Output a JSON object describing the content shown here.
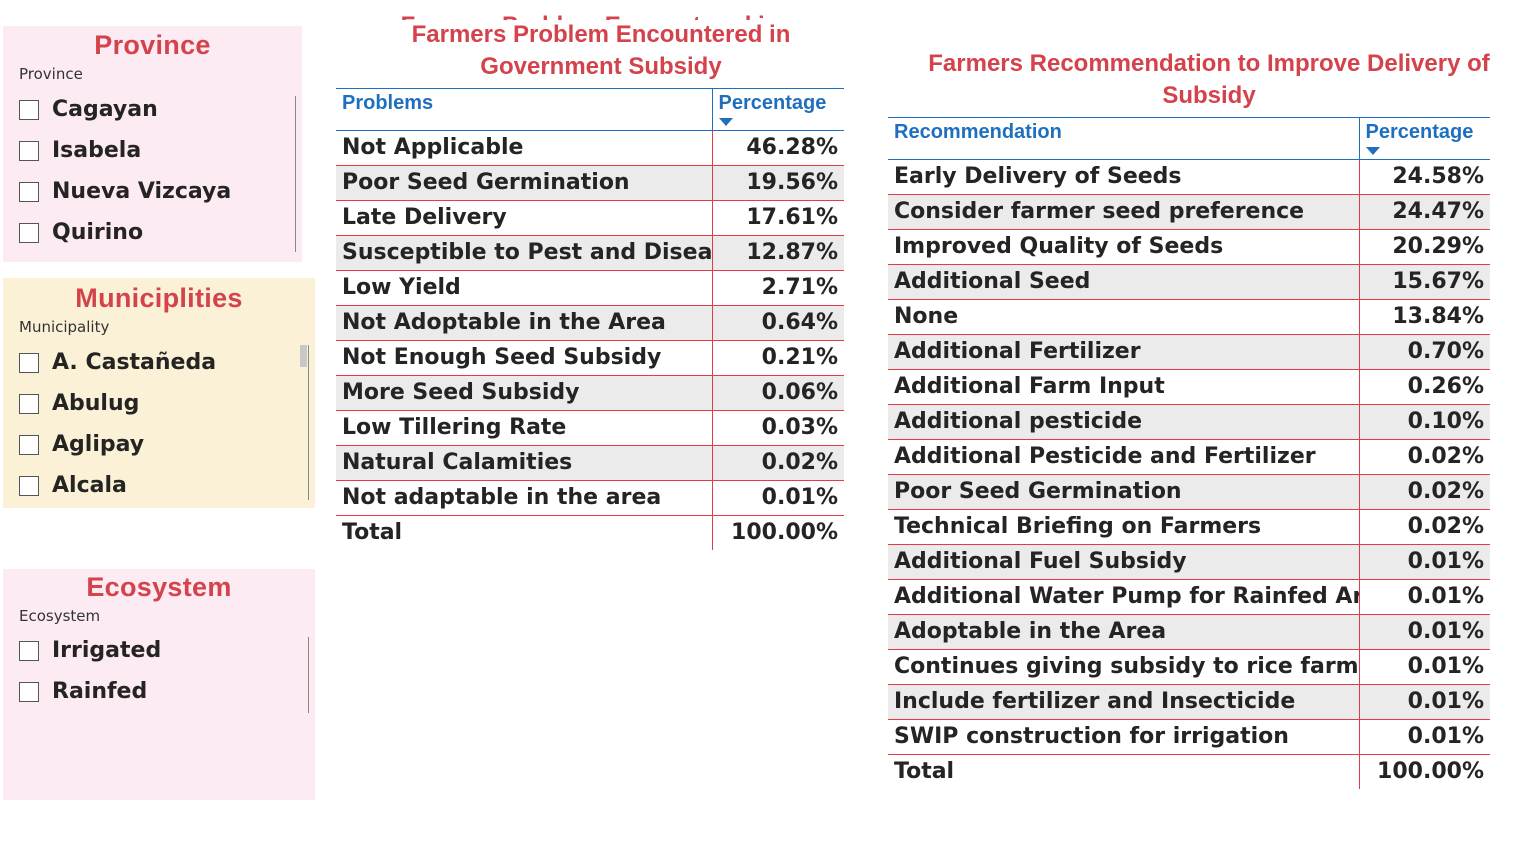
{
  "slicers": {
    "province": {
      "title": "Province",
      "header": "Province",
      "items": [
        "Cagayan",
        "Isabela",
        "Nueva Vizcaya",
        "Quirino"
      ],
      "background": "#fcebf3"
    },
    "municipality": {
      "title": "Municiplities",
      "header": "Municipality",
      "items": [
        "A. Castañeda",
        "Abulug",
        "Aglipay",
        "Alcala"
      ],
      "background": "#faf1d7"
    },
    "ecosystem": {
      "title": "Ecosystem",
      "header": "Ecosystem",
      "items": [
        "Irrigated",
        "Rainfed"
      ],
      "background": "#fcebf3"
    }
  },
  "problems_table": {
    "title_line1": "Farmers Problem Encountered in",
    "title_line2": "Government Subsidy",
    "col_problem": "Problems",
    "col_percentage": "Percentage",
    "rows": [
      {
        "label": "Not Applicable",
        "value": "46.28%"
      },
      {
        "label": "Poor Seed Germination",
        "value": "19.56%"
      },
      {
        "label": "Late Delivery",
        "value": "17.61%"
      },
      {
        "label": "Susceptible to Pest and Diseases",
        "value": "12.87%"
      },
      {
        "label": "Low Yield",
        "value": "2.71%"
      },
      {
        "label": "Not Adoptable in the Area",
        "value": "0.64%"
      },
      {
        "label": "Not Enough Seed Subsidy",
        "value": "0.21%"
      },
      {
        "label": "More Seed Subsidy",
        "value": "0.06%"
      },
      {
        "label": "Low Tillering Rate",
        "value": "0.03%"
      },
      {
        "label": "Natural Calamities",
        "value": "0.02%"
      },
      {
        "label": "Not adaptable in the area",
        "value": "0.01%"
      }
    ],
    "total_label": "Total",
    "total_value": "100.00%"
  },
  "recommendations_table": {
    "title_line1": "Farmers Recommendation to Improve Delivery of",
    "title_line2": "Subsidy",
    "col_recommendation": "Recommendation",
    "col_percentage": "Percentage",
    "rows": [
      {
        "label": "Early Delivery of Seeds",
        "value": "24.58%"
      },
      {
        "label": "Consider farmer seed preference",
        "value": "24.47%"
      },
      {
        "label": "Improved Quality of Seeds",
        "value": "20.29%"
      },
      {
        "label": "Additional Seed",
        "value": "15.67%"
      },
      {
        "label": "None",
        "value": "13.84%"
      },
      {
        "label": "Additional Fertilizer",
        "value": "0.70%"
      },
      {
        "label": "Additional Farm Input",
        "value": "0.26%"
      },
      {
        "label": "Additional pesticide",
        "value": "0.10%"
      },
      {
        "label": "Additional Pesticide and Fertilizer",
        "value": "0.02%"
      },
      {
        "label": "Poor Seed Germination",
        "value": "0.02%"
      },
      {
        "label": "Technical Briefing on Farmers",
        "value": "0.02%"
      },
      {
        "label": "Additional Fuel Subsidy",
        "value": "0.01%"
      },
      {
        "label": "Additional Water Pump for Rainfed Area",
        "value": "0.01%"
      },
      {
        "label": "Adoptable in the Area",
        "value": "0.01%"
      },
      {
        "label": "Continues giving subsidy to rice farmers",
        "value": "0.01%"
      },
      {
        "label": "Include fertilizer and Insecticide",
        "value": "0.01%"
      },
      {
        "label": "SWIP construction for irrigation",
        "value": "0.01%"
      }
    ],
    "total_label": "Total",
    "total_value": "100.00%"
  },
  "colors": {
    "title_red": "#d4424b",
    "header_blue": "#1f6fbf",
    "row_border_red": "#e23d47",
    "alt_row_gray": "#ebebeb"
  }
}
